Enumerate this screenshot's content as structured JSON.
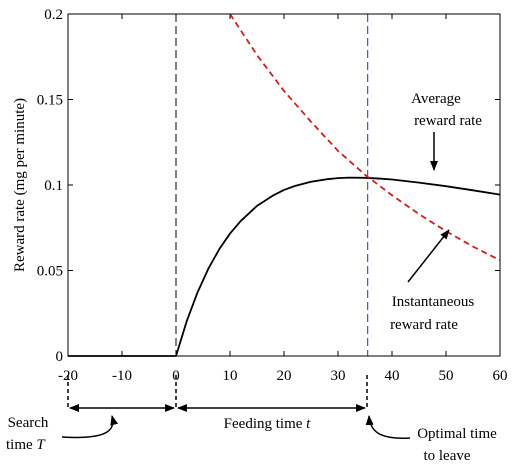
{
  "chart_data": {
    "type": "line",
    "ylabel": "Reward rate (mg per minute)",
    "xlim": [
      -20,
      60
    ],
    "ylim": [
      0,
      0.2
    ],
    "x_ticks": [
      -20,
      -10,
      0,
      10,
      20,
      30,
      40,
      50,
      60
    ],
    "x_tick_labels": [
      "-20",
      "-10",
      "0",
      "10",
      "20",
      "30",
      "40",
      "50",
      "60"
    ],
    "y_ticks": [
      0,
      0.05,
      0.1,
      0.15,
      0.2
    ],
    "y_tick_labels": [
      "0",
      "0.05",
      "0.1",
      "0.15",
      "0.2"
    ],
    "grid": false,
    "series": [
      {
        "key": "average",
        "color": "#000000",
        "style": "solid",
        "x": [
          -20,
          -10,
          0,
          2,
          4,
          6,
          8,
          10,
          12,
          15,
          18,
          20,
          22,
          25,
          28,
          30,
          32,
          35,
          38,
          40,
          45,
          50,
          55,
          60
        ],
        "y": [
          0,
          0,
          0,
          0.0205,
          0.0373,
          0.0511,
          0.0624,
          0.0716,
          0.079,
          0.0878,
          0.0939,
          0.0971,
          0.0994,
          0.1019,
          0.1034,
          0.104,
          0.1043,
          0.1042,
          0.1037,
          0.1032,
          0.1014,
          0.0993,
          0.0969,
          0.0944
        ]
      },
      {
        "key": "instantaneous",
        "color": "#cc1f1a",
        "style": "dashed",
        "x": [
          10,
          15,
          20,
          25,
          30,
          35,
          40,
          45,
          50,
          55,
          60
        ],
        "y": [
          0.2,
          0.176,
          0.155,
          0.137,
          0.12,
          0.106,
          0.094,
          0.083,
          0.073,
          0.064,
          0.056
        ]
      }
    ],
    "vlines": [
      {
        "x": 0,
        "color": "#000000",
        "style": "dashed"
      },
      {
        "x": 35.5,
        "color": "#1f2fd6",
        "style": "dashed"
      }
    ],
    "annotations": {
      "average_label_line1": "Average",
      "average_label_line2": "reward rate",
      "instant_label_line1": "Instantaneous",
      "instant_label_line2": "reward rate",
      "search_line1": "Search",
      "search_line2": "time",
      "search_var": "T",
      "feeding_text": "Feeding time",
      "feeding_var": "t",
      "optimal_line1": "Optimal time",
      "optimal_line2": "to leave"
    }
  }
}
